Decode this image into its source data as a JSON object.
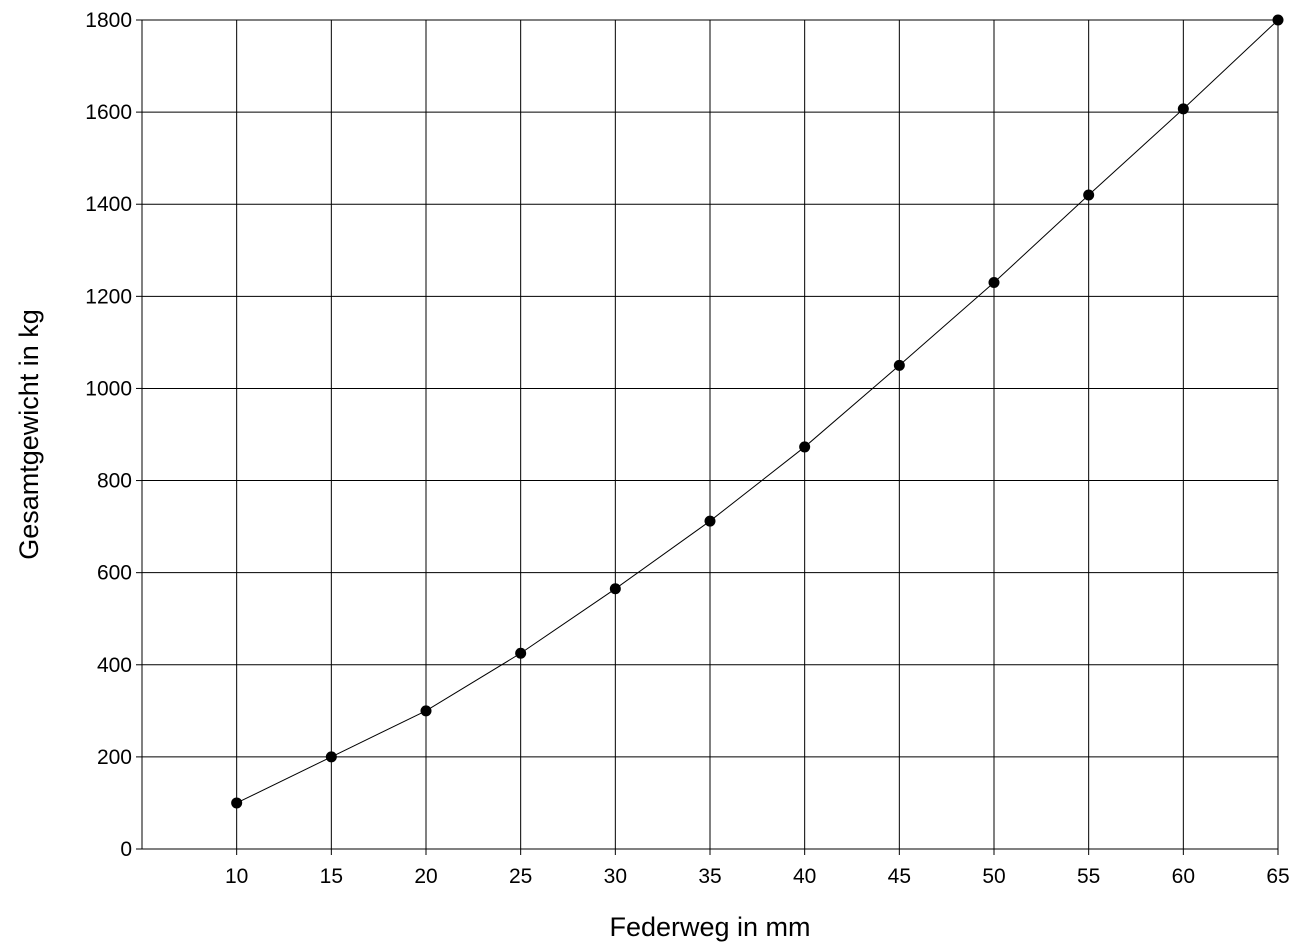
{
  "chart_data": {
    "type": "line",
    "title": "",
    "xlabel": "Federweg in mm",
    "ylabel": "Gesamtgewicht in kg",
    "x_ticks": [
      "10",
      "15",
      "20",
      "25",
      "30",
      "35",
      "40",
      "45",
      "50",
      "55",
      "60",
      "65"
    ],
    "y_ticks": [
      "0",
      "200",
      "400",
      "600",
      "800",
      "1000",
      "1200",
      "1400",
      "1600",
      "1800"
    ],
    "xlim": [
      5,
      65
    ],
    "ylim": [
      0,
      1800
    ],
    "grid": true,
    "legend": "none",
    "series": [
      {
        "x": [
          10,
          15,
          20,
          25,
          30,
          35,
          40,
          45,
          50,
          55,
          60,
          65
        ],
        "y": [
          100,
          200,
          300,
          425,
          565,
          712,
          873,
          1050,
          1230,
          1420,
          1607,
          1800
        ],
        "color": "#000000",
        "marker": "circle"
      }
    ]
  }
}
